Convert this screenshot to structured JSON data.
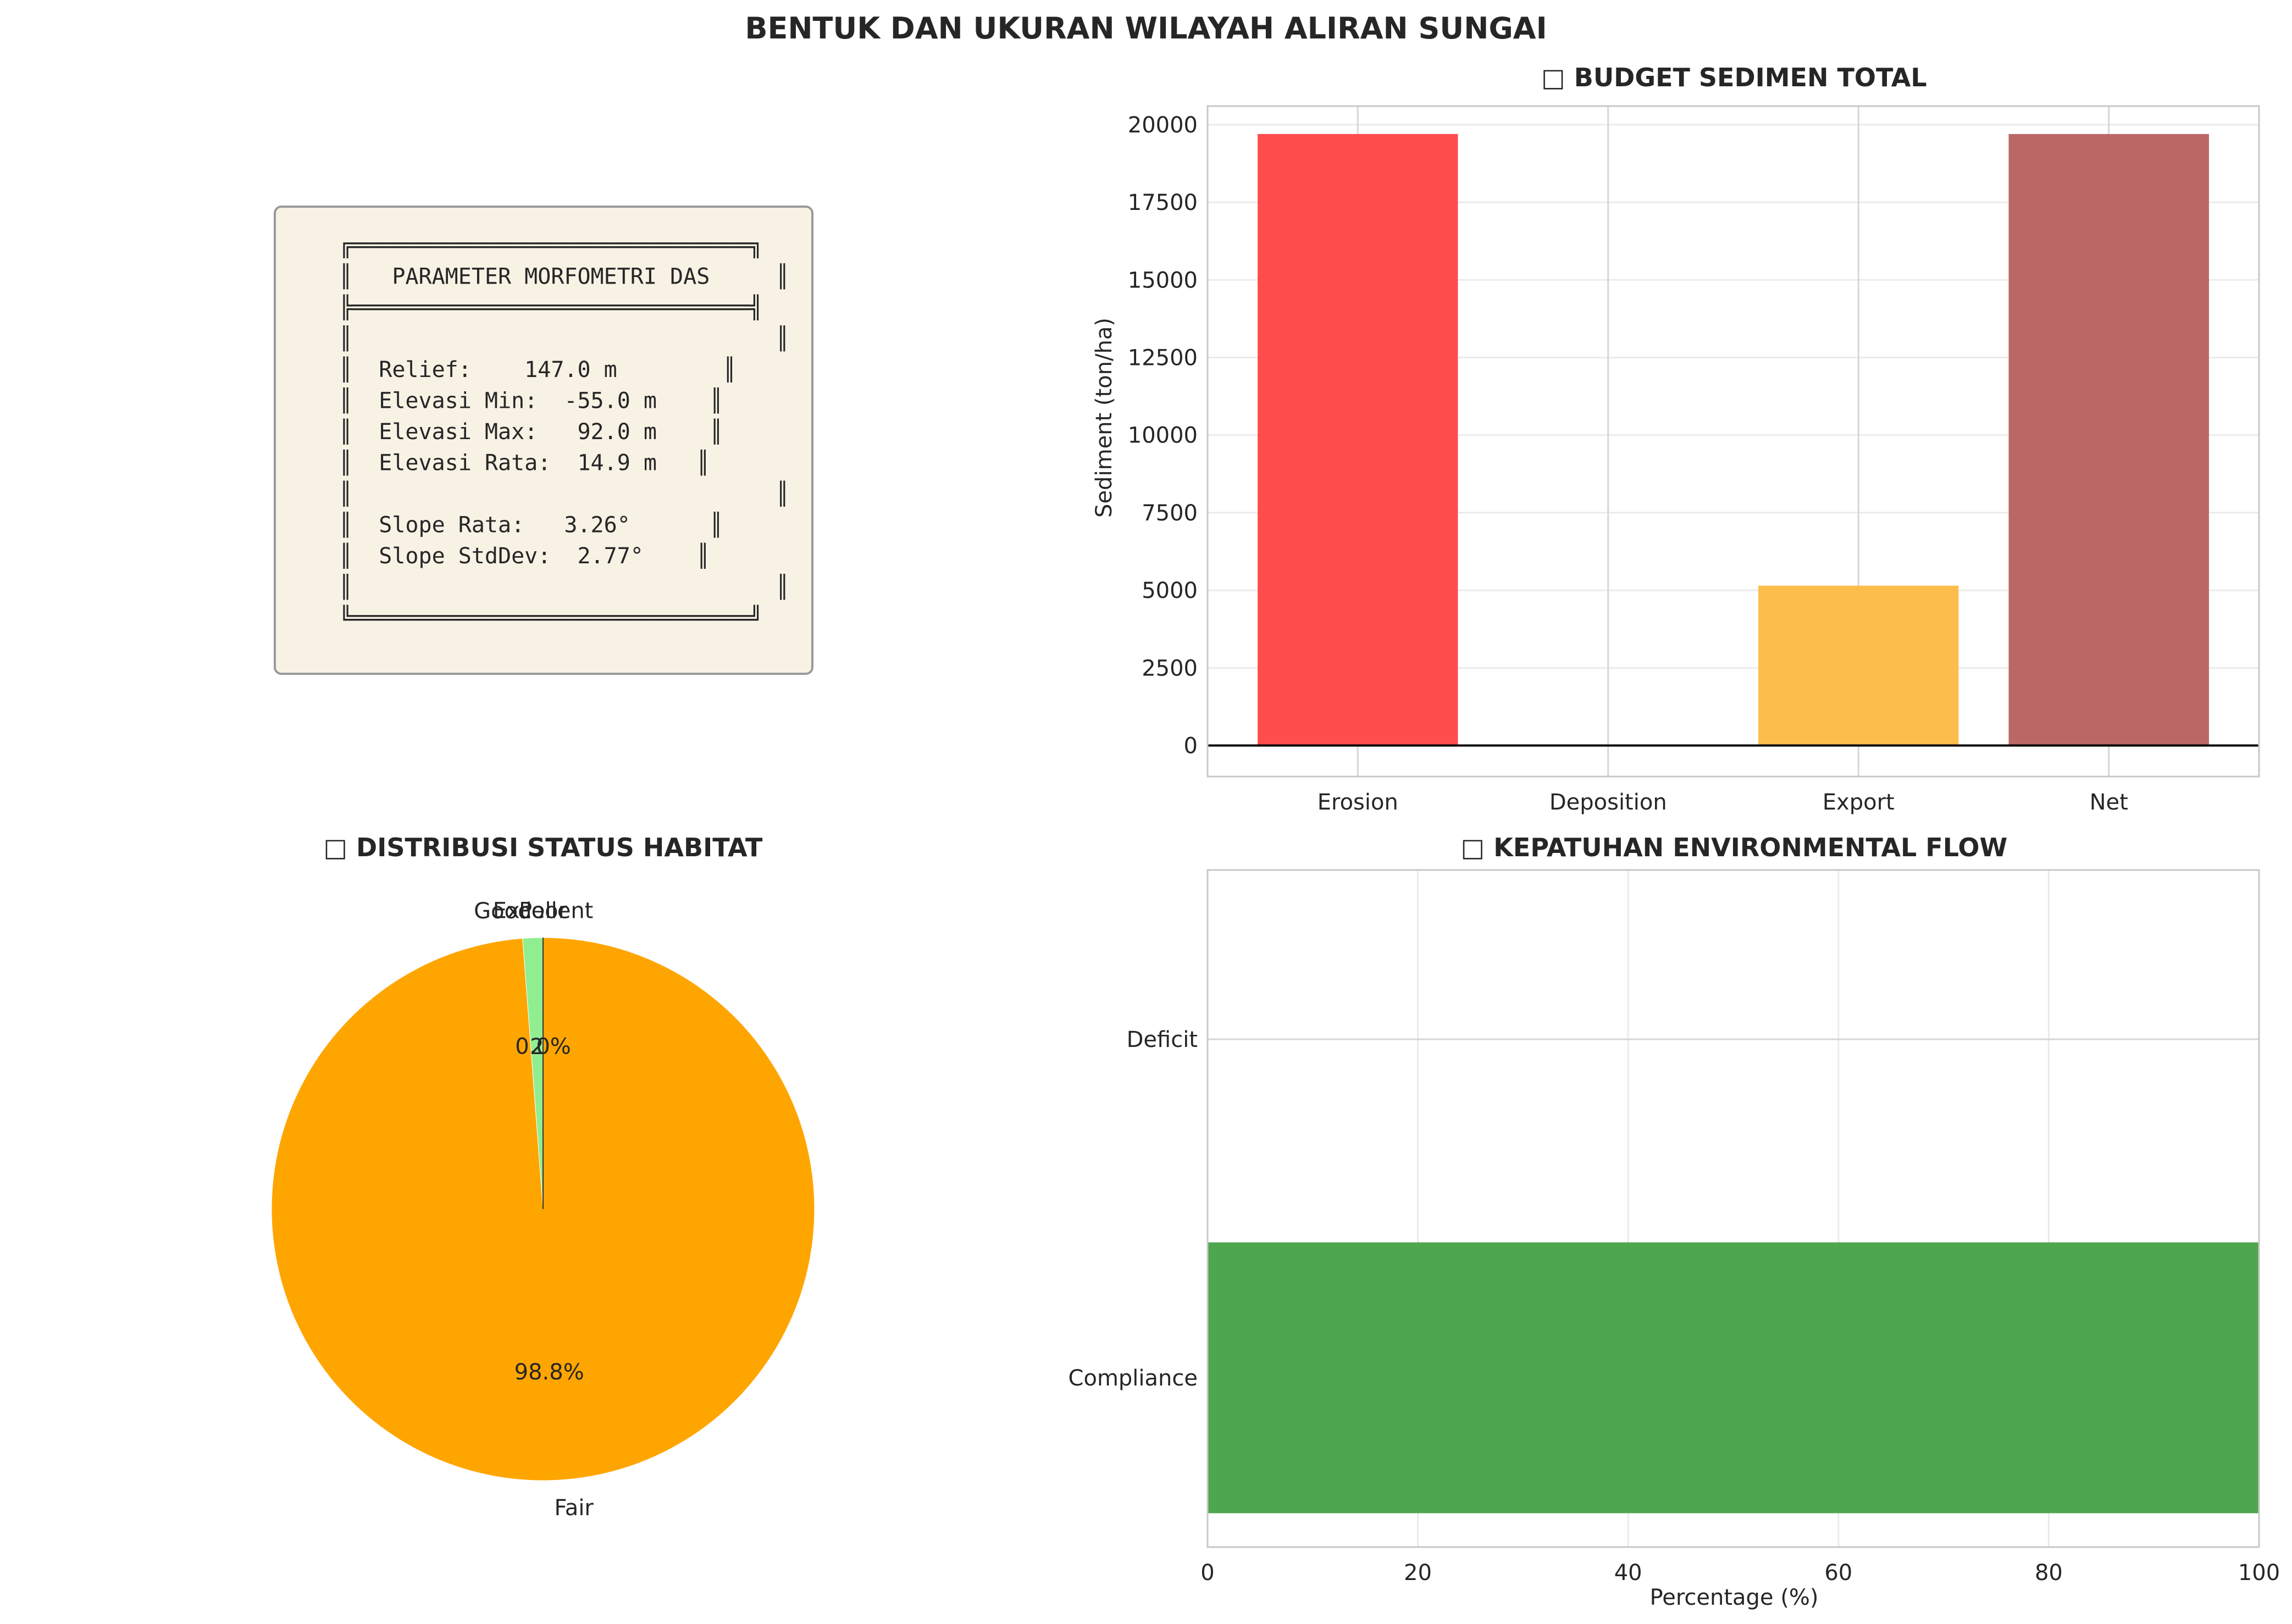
{
  "figure": {
    "title": "BENTUK DAN UKURAN WILAYAH ALIRAN SUNGAI"
  },
  "info_box": {
    "lines": [
      "╔══════════════════════════════╗",
      "║   PARAMETER MORFOMETRI DAS     ║",
      "╠══════════════════════════════╣",
      "║                                ║",
      "║  Relief:    147.0 m        ║",
      "║  Elevasi Min:  -55.0 m    ║",
      "║  Elevasi Max:   92.0 m    ║",
      "║  Elevasi Rata:  14.9 m   ║",
      "║                                ║",
      "║  Slope Rata:   3.26°      ║",
      "║  Slope StdDev:  2.77°    ║",
      "║                                ║",
      "╚══════════════════════════════╝"
    ]
  },
  "chart_data": [
    {
      "type": "bar",
      "title": "□ BUDGET SEDIMEN TOTAL",
      "categories": [
        "Erosion",
        "Deposition",
        "Export",
        "Net"
      ],
      "values": [
        19700,
        0,
        5150,
        19700
      ],
      "colors": [
        "#ff4d4d",
        "#6495ed",
        "#fdbd4c",
        "#bb6766"
      ],
      "ylabel": "Sediment (ton/ha)",
      "xlabel": "",
      "ylim": [
        -1000,
        20600
      ],
      "yticks": [
        0,
        2500,
        5000,
        7500,
        10000,
        12500,
        15000,
        17500,
        20000
      ],
      "grid": true
    },
    {
      "type": "pie",
      "title": "□ DISTRIBUSI STATUS HABITAT",
      "labels": [
        "Excellent",
        "Good",
        "Fair",
        "Poor"
      ],
      "values": [
        0.0,
        1.2,
        98.8,
        0.0
      ],
      "pct_labels": [
        "0.0%",
        "1.2%",
        "98.8%",
        "0.0%"
      ],
      "colors": [
        "#2e8b57",
        "#90ee90",
        "#ffa500",
        "#ff4500"
      ]
    },
    {
      "type": "bar",
      "orientation": "horizontal",
      "title": "□ KEPATUHAN ENVIRONMENTAL FLOW",
      "categories": [
        "Compliance",
        "Deficit"
      ],
      "values": [
        100,
        0
      ],
      "colors": [
        "#4ea64e",
        "#e05050"
      ],
      "xlabel": "Percentage (%)",
      "ylabel": "",
      "xlim": [
        0,
        100
      ],
      "xticks": [
        0,
        20,
        40,
        60,
        80,
        100
      ],
      "grid": true
    }
  ]
}
